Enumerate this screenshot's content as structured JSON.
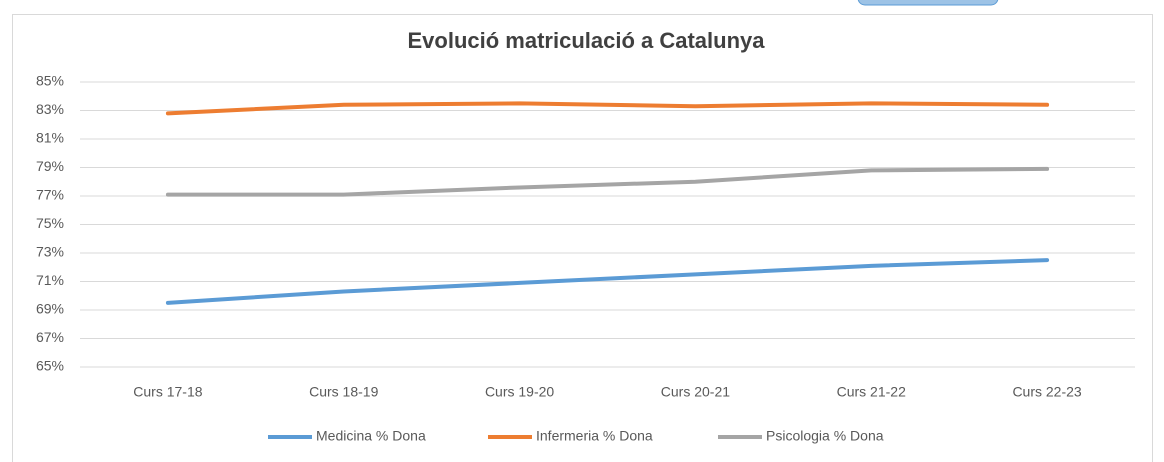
{
  "chart_data": {
    "type": "line",
    "title": "Evolució matriculació a Catalunya",
    "categories": [
      "Curs 17-18",
      "Curs 18-19",
      "Curs 19-20",
      "Curs 20-21",
      "Curs 21-22",
      "Curs 22-23"
    ],
    "series": [
      {
        "name": "Medicina % Dona",
        "color": "#5b9bd5",
        "values": [
          69.5,
          70.3,
          70.9,
          71.5,
          72.1,
          72.5
        ]
      },
      {
        "name": "Infermeria % Dona",
        "color": "#ed7d31",
        "values": [
          82.8,
          83.4,
          83.5,
          83.3,
          83.5,
          83.4
        ]
      },
      {
        "name": "Psicologia % Dona",
        "color": "#a5a5a5",
        "values": [
          77.1,
          77.1,
          77.6,
          78.0,
          78.8,
          78.9
        ]
      }
    ],
    "ylim": [
      65,
      85
    ],
    "yticks": [
      {
        "value": 65,
        "label": "65%"
      },
      {
        "value": 67,
        "label": "67%"
      },
      {
        "value": 69,
        "label": "69%"
      },
      {
        "value": 71,
        "label": "71%"
      },
      {
        "value": 73,
        "label": "73%"
      },
      {
        "value": 75,
        "label": "75%"
      },
      {
        "value": 77,
        "label": "77%"
      },
      {
        "value": 79,
        "label": "79%"
      },
      {
        "value": 81,
        "label": "81%"
      },
      {
        "value": 83,
        "label": "83%"
      },
      {
        "value": 85,
        "label": "85%"
      }
    ],
    "grid": true,
    "legend": "bottom"
  }
}
